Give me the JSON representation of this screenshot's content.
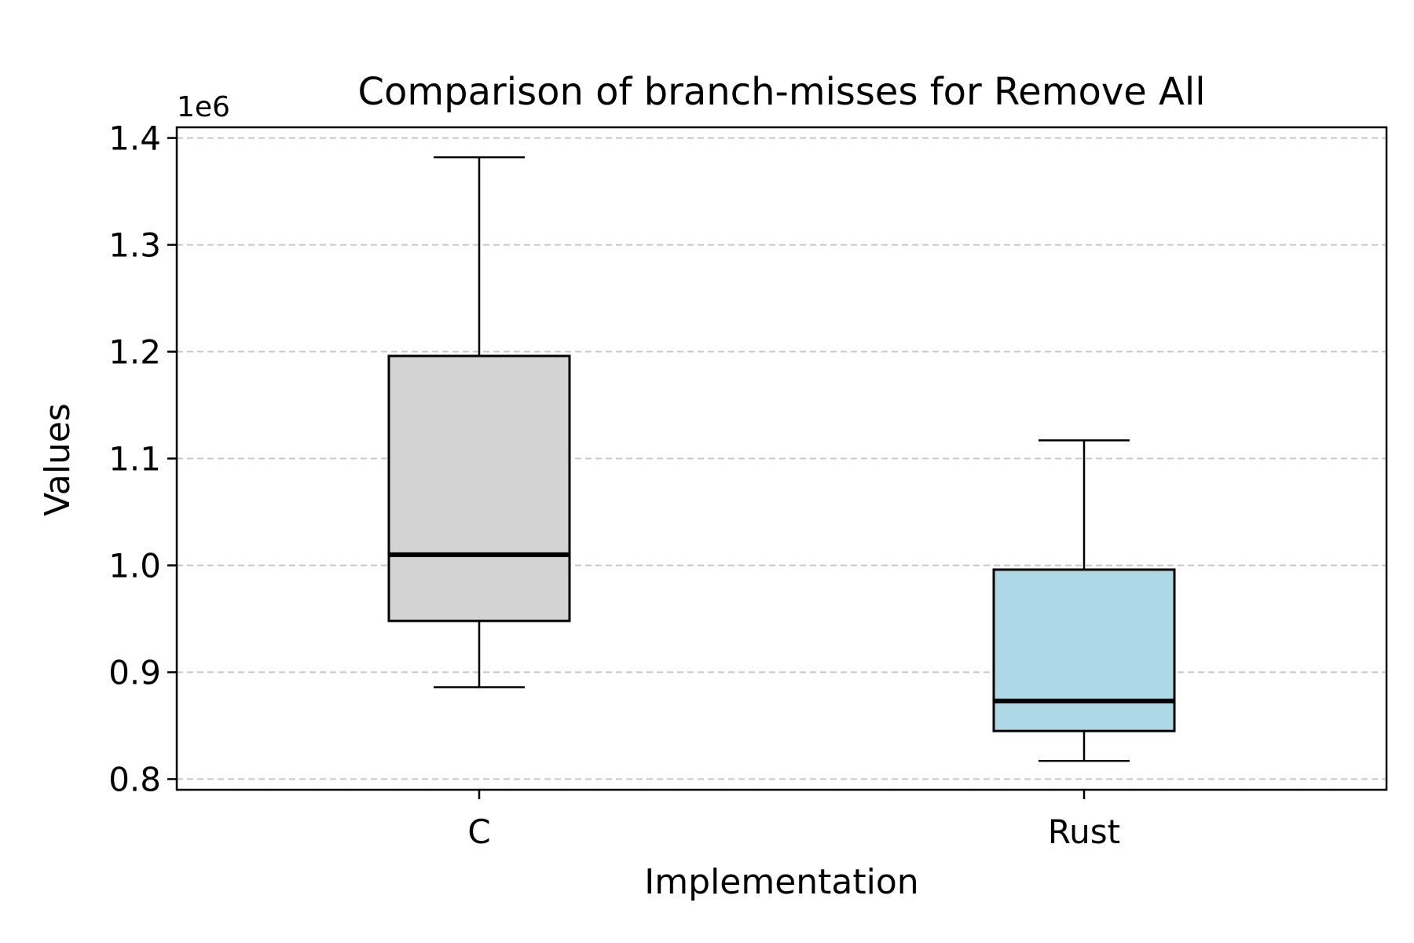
{
  "chart_data": {
    "type": "box",
    "title": "Comparison of branch-misses for Remove All",
    "xlabel": "Implementation",
    "ylabel": "Values",
    "y_offset_label": "1e6",
    "y_scale": 1000000,
    "ylim": [
      790000,
      1410000
    ],
    "yticks": [
      800000,
      900000,
      1000000,
      1100000,
      1200000,
      1300000,
      1400000
    ],
    "ytick_labels": [
      "0.8",
      "0.9",
      "1.0",
      "1.1",
      "1.2",
      "1.3",
      "1.4"
    ],
    "grid": "y-dashed",
    "categories": [
      "C",
      "Rust"
    ],
    "boxes": [
      {
        "name": "C",
        "whisker_low": 886000,
        "q1": 948000,
        "median": 1010000,
        "q3": 1196000,
        "whisker_high": 1382000,
        "color": "#d3d3d3"
      },
      {
        "name": "Rust",
        "whisker_low": 817000,
        "q1": 845000,
        "median": 873000,
        "q3": 996000,
        "whisker_high": 1117000,
        "color": "#add8e6"
      }
    ]
  }
}
